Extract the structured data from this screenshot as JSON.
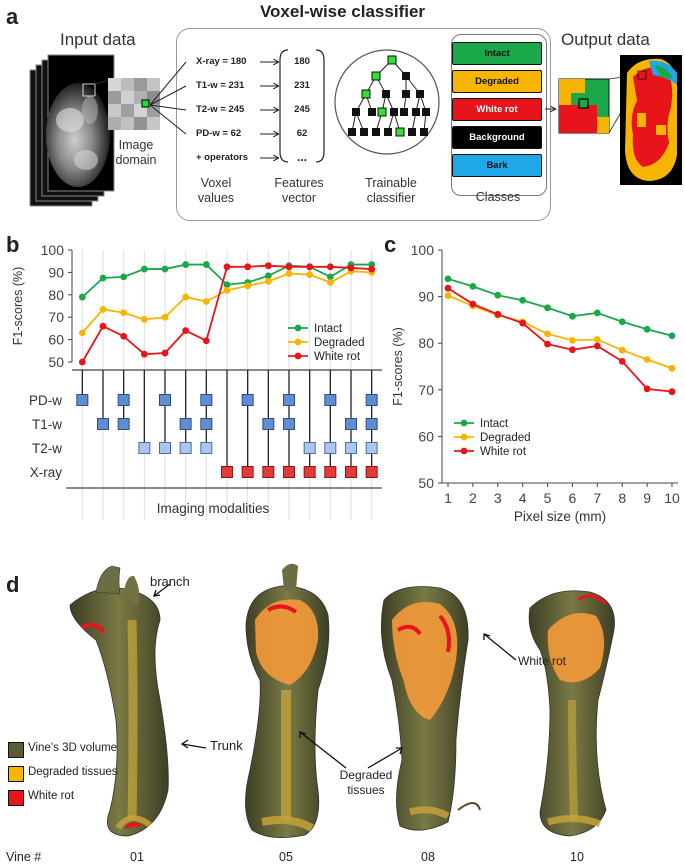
{
  "figure_title": "Voxel-wise classifier",
  "panel_a": {
    "letter": "a",
    "input_title": "Input data",
    "output_title": "Output data",
    "image_domain_label": [
      "Image",
      "domain"
    ],
    "features": [
      {
        "label": "X-ray = 180",
        "value": "180"
      },
      {
        "label": "T1-w = 231",
        "value": "231"
      },
      {
        "label": "T2-w = 245",
        "value": "245"
      },
      {
        "label": "PD-w = 62",
        "value": "62"
      },
      {
        "label": "+ operators",
        "value": "..."
      }
    ],
    "voxel_values_label": [
      "Voxel",
      "values"
    ],
    "features_vector_label": [
      "Features",
      "vector"
    ],
    "trainable_label": [
      "Trainable",
      "classifier"
    ],
    "classes_label": "Classes",
    "classes": [
      {
        "name": "Intact",
        "color": "#1aa84a",
        "text_color": "#111"
      },
      {
        "name": "Degraded",
        "color": "#f7b500",
        "text_color": "#111"
      },
      {
        "name": "White rot",
        "color": "#e8141b",
        "text_color": "#fff"
      },
      {
        "name": "Background",
        "color": "#000000",
        "text_color": "#fff"
      },
      {
        "name": "Bark",
        "color": "#1fa8e8",
        "text_color": "#111"
      }
    ]
  },
  "chart_data": [
    {
      "panel": "b",
      "type": "line",
      "ylabel": "F1-scores (%)",
      "xlabel": "Imaging modalities",
      "ylim": [
        50,
        100
      ],
      "yticks": [
        "50",
        "60",
        "70",
        "80",
        "90",
        "100"
      ],
      "x": [
        1,
        2,
        3,
        4,
        5,
        6,
        7,
        8,
        9,
        10,
        11,
        12,
        13,
        14,
        15
      ],
      "series": [
        {
          "name": "Intact",
          "color": "#1aa84a",
          "values": [
            79,
            87.5,
            88,
            91.5,
            91.5,
            93.5,
            93.5,
            84.5,
            85.5,
            88.5,
            93,
            92.5,
            88,
            93.5,
            93.5
          ]
        },
        {
          "name": "Degraded",
          "color": "#f7b500",
          "values": [
            63,
            73.5,
            72,
            69,
            70,
            79,
            77,
            82,
            84,
            86,
            89.5,
            89,
            85.5,
            90.5,
            90
          ]
        },
        {
          "name": "White rot",
          "color": "#e8141b",
          "values": [
            50,
            66,
            61.5,
            53.5,
            54,
            64,
            59.5,
            92.5,
            92.5,
            93,
            92.5,
            92.5,
            92.5,
            92,
            91.5
          ]
        }
      ],
      "legend_position": "bottom-right",
      "modalities": [
        "PD-w",
        "T1-w",
        "T2-w",
        "X-ray"
      ],
      "modality_matrix": [
        [
          1,
          0,
          1,
          0,
          1,
          0,
          1,
          0,
          1,
          0,
          1,
          0,
          1,
          0,
          1
        ],
        [
          0,
          1,
          1,
          0,
          0,
          1,
          1,
          0,
          0,
          1,
          1,
          0,
          0,
          1,
          1
        ],
        [
          0,
          0,
          0,
          1,
          1,
          1,
          1,
          0,
          0,
          0,
          0,
          1,
          1,
          1,
          1
        ],
        [
          0,
          0,
          0,
          0,
          0,
          0,
          0,
          1,
          1,
          1,
          1,
          1,
          1,
          1,
          1
        ]
      ]
    },
    {
      "panel": "c",
      "type": "line",
      "ylabel": "F1-scores (%)",
      "xlabel": "Pixel size (mm)",
      "ylim": [
        50,
        100
      ],
      "yticks": [
        "50",
        "60",
        "70",
        "80",
        "90",
        "100"
      ],
      "x": [
        1,
        2,
        3,
        4,
        5,
        6,
        7,
        8,
        9,
        10
      ],
      "xticks": [
        "1",
        "2",
        "3",
        "4",
        "5",
        "6",
        "7",
        "8",
        "9",
        "10"
      ],
      "series": [
        {
          "name": "Intact",
          "color": "#1aa84a",
          "values": [
            93.8,
            92.2,
            90.3,
            89.2,
            87.6,
            85.8,
            86.5,
            84.6,
            83,
            81.6
          ]
        },
        {
          "name": "Degraded",
          "color": "#f7b500",
          "values": [
            90.2,
            88,
            86,
            84.6,
            82,
            80.6,
            80.8,
            78.5,
            76.5,
            74.6
          ]
        },
        {
          "name": "White rot",
          "color": "#e8141b",
          "values": [
            91.8,
            88.4,
            86.2,
            84.3,
            79.8,
            78.6,
            79.4,
            76.1,
            70.2,
            69.6
          ]
        }
      ],
      "legend_position": "bottom-left"
    }
  ],
  "panel_d": {
    "letter": "d",
    "annotations": {
      "branch": "branch",
      "trunk": "Trunk",
      "degraded": [
        "Degraded",
        "tissues"
      ],
      "white_rot": "White rot"
    },
    "legend": [
      {
        "name": "Vine’s 3D volume",
        "color": "#5b5b38"
      },
      {
        "name": "Degraded tissues",
        "color": "#f7b500"
      },
      {
        "name": "White rot",
        "color": "#e8141b"
      }
    ],
    "vine_label": "Vine #",
    "vines": [
      "01",
      "05",
      "08",
      "10"
    ]
  }
}
